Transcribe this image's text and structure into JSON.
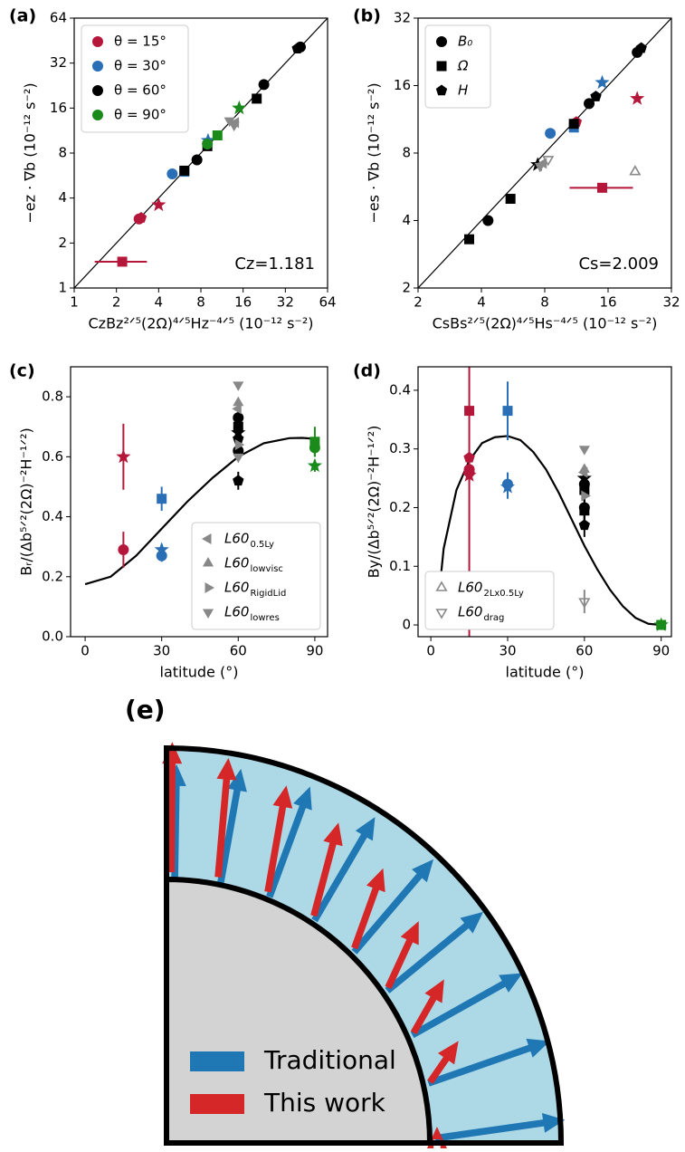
{
  "chart_data": [
    {
      "type": "scatter",
      "label": "(a)",
      "xlabel": "CzBz²ᐟ⁵(2Ω)⁴ᐟ⁵Hz⁻⁴ᐟ⁵ (10⁻¹² s⁻²)",
      "ylabel": "−ez · ∇b (10⁻¹² s⁻²)",
      "annotation": "Cz=1.181",
      "xlog": true,
      "ylog": true,
      "xlim": [
        1,
        64
      ],
      "ylim": [
        1,
        64
      ],
      "xticks": [
        1,
        2,
        4,
        8,
        16,
        32,
        64
      ],
      "yticks": [
        1,
        2,
        4,
        8,
        16,
        32,
        64
      ],
      "diagonal": true,
      "legend_corner": "upper left",
      "series": [
        {
          "name": "θ = 15°",
          "color": "#b5173a",
          "x": [
            2.9,
            3.0,
            4.0,
            2.2
          ],
          "values": [
            2.9,
            2.95,
            3.6,
            1.5
          ],
          "markers": [
            "circle",
            "pentagon",
            "star",
            "square"
          ],
          "xerr": [
            null,
            null,
            null,
            [
              0.8,
              1.1
            ]
          ]
        },
        {
          "name": "θ = 30°",
          "color": "#2a6fb5",
          "x": [
            5.0,
            6.1,
            9.0
          ],
          "values": [
            5.8,
            6.0,
            9.7
          ],
          "markers": [
            "circle",
            "square",
            "star"
          ]
        },
        {
          "name": "θ = 60°",
          "color": "#000000",
          "x": [
            6.1,
            7.5,
            8.9,
            20,
            22.5,
            39,
            41
          ],
          "values": [
            6.1,
            7.2,
            8.9,
            18.5,
            23,
            40,
            41
          ],
          "markers": [
            "square",
            "circle",
            "square",
            "square",
            "circle",
            "pentagon",
            "circle"
          ]
        },
        {
          "name": "θ = 90°",
          "color": "#1a8a1a",
          "x": [
            8.9,
            10.5,
            15
          ],
          "values": [
            9.2,
            10.5,
            16
          ],
          "markers": [
            "circle",
            "square",
            "star"
          ]
        },
        {
          "color": "#888888",
          "x": [
            12.8,
            13.8,
            14.2
          ],
          "values": [
            13.2,
            12.3,
            12.8
          ],
          "markers": [
            "tri-down",
            "tri-down",
            "tri-left"
          ]
        }
      ]
    },
    {
      "type": "scatter",
      "label": "(b)",
      "xlabel": "CsBs²ᐟ⁵(2Ω)⁴ᐟ⁵Hs⁻⁴ᐟ⁵ (10⁻¹² s⁻²)",
      "ylabel": "−es · ∇b (10⁻¹² s⁻²)",
      "annotation": "Cs=2.009",
      "xlog": true,
      "ylog": true,
      "xlim": [
        2,
        32
      ],
      "ylim": [
        2,
        32
      ],
      "xticks": [
        2,
        4,
        8,
        16,
        32
      ],
      "yticks": [
        2,
        4,
        8,
        16,
        32
      ],
      "diagonal": true,
      "legend_corner": "upper left",
      "legend_entries": [
        {
          "label": "B₀",
          "marker": "circle",
          "color": "#000000"
        },
        {
          "label": "Ω",
          "marker": "square",
          "color": "#000000"
        },
        {
          "label": "H",
          "marker": "pentagon",
          "color": "#000000"
        }
      ],
      "series": [
        {
          "color": "#b5173a",
          "x": [
            11.3,
            22,
            15
          ],
          "values": [
            11,
            14,
            5.6
          ],
          "markers": [
            "pentagon",
            "star",
            "square"
          ],
          "xerr": [
            null,
            null,
            [
              4.5,
              6
            ]
          ]
        },
        {
          "color": "#2a6fb5",
          "x": [
            8.5,
            11,
            15
          ],
          "values": [
            9.8,
            10.4,
            16.5
          ],
          "markers": [
            "circle",
            "square",
            "star"
          ]
        },
        {
          "color": "#000000",
          "x": [
            3.5,
            4.3,
            5.5,
            7.4,
            11,
            13,
            14,
            22,
            23
          ],
          "values": [
            3.3,
            4.0,
            5.0,
            7.1,
            10.8,
            13.3,
            14.3,
            22.5,
            23.5
          ],
          "markers": [
            "square",
            "circle",
            "square",
            "star",
            "square",
            "circle",
            "pentagon",
            "circle",
            "pentagon"
          ]
        },
        {
          "color": "#888888",
          "x": [
            7.6,
            7.9,
            8.3,
            21.5
          ],
          "values": [
            7.0,
            7.2,
            7.5,
            6.6
          ],
          "markers": [
            "tri-down",
            "tri-left",
            "tri-down-open",
            "tri-up-open"
          ]
        }
      ]
    },
    {
      "type": "scatter",
      "label": "(c)",
      "xlabel": "latitude (°)",
      "ylabel": "Bᵣ/(Δb⁵ᐟ²(2Ω)⁻²H⁻¹ᐟ²)",
      "xlim": [
        -5.7,
        95
      ],
      "ylim": [
        0,
        0.9
      ],
      "xticks": [
        0,
        30,
        60,
        90
      ],
      "yticks": [
        {
          "value": 0,
          "label": "0.0"
        },
        0.2,
        0.4,
        0.6,
        0.8
      ],
      "legend_corner": "lower right",
      "legend_entries": [
        {
          "label": "L60",
          "subscript": "0.5Ly",
          "marker": "tri-left",
          "color": "#888888"
        },
        {
          "label": "L60",
          "subscript": "lowvisc",
          "marker": "tri-up",
          "color": "#888888"
        },
        {
          "label": "L60",
          "subscript": "RigidLid",
          "marker": "tri-right",
          "color": "#888888"
        },
        {
          "label": "L60",
          "subscript": "lowres",
          "marker": "tri-down",
          "color": "#888888"
        }
      ],
      "curve": {
        "x": [
          0,
          10,
          20,
          30,
          40,
          50,
          60,
          70,
          80,
          85,
          90
        ],
        "values": [
          0.175,
          0.2,
          0.27,
          0.36,
          0.45,
          0.53,
          0.6,
          0.645,
          0.662,
          0.663,
          0.66
        ]
      },
      "series": [
        {
          "color": "#b5173a",
          "x": [
            15,
            15
          ],
          "values": [
            0.6,
            0.29
          ],
          "markers": [
            "star",
            "circle"
          ],
          "yerr": [
            0.11,
            0.06
          ]
        },
        {
          "color": "#2a6fb5",
          "x": [
            30,
            30,
            30
          ],
          "values": [
            0.46,
            0.29,
            0.27
          ],
          "markers": [
            "square",
            "star",
            "circle"
          ],
          "yerr": [
            0.04,
            0.02,
            0.02
          ]
        },
        {
          "color": "#000000",
          "x": [
            60,
            60,
            60,
            60,
            60,
            60
          ],
          "values": [
            0.73,
            0.7,
            0.68,
            0.66,
            0.62,
            0.52
          ],
          "markers": [
            "circle",
            "square",
            "star",
            "pentagon",
            "circle",
            "pentagon"
          ],
          "yerr": [
            0.03,
            0.03,
            0.03,
            0.03,
            0.03,
            0.03
          ]
        },
        {
          "color": "#888888",
          "x": [
            60,
            60,
            60,
            60,
            60
          ],
          "values": [
            0.84,
            0.78,
            0.76,
            0.64,
            0.6
          ],
          "markers": [
            "tri-down",
            "tri-up",
            "tri-left",
            "tri-right",
            "tri-down"
          ]
        },
        {
          "color": "#1a8a1a",
          "x": [
            90,
            90,
            90
          ],
          "values": [
            0.65,
            0.63,
            0.57
          ],
          "markers": [
            "square",
            "circle",
            "star"
          ],
          "yerr": [
            0.05,
            0.03,
            0.02
          ]
        }
      ]
    },
    {
      "type": "scatter",
      "label": "(d)",
      "xlabel": "latitude (°)",
      "ylabel": "By/(Δb⁵ᐟ²(2Ω)⁻²H⁻¹ᐟ²)",
      "xlim": [
        -5,
        94
      ],
      "ylim": [
        -0.02,
        0.44
      ],
      "xticks": [
        0,
        30,
        60,
        90
      ],
      "yticks": [
        0,
        0.1,
        0.2,
        0.3,
        0.4
      ],
      "legend_corner": "lower left",
      "legend_entries": [
        {
          "label": "L60",
          "subscript": "2Lx0.5Ly",
          "marker": "tri-up-open",
          "color": "#888888"
        },
        {
          "label": "L60",
          "subscript": "drag",
          "marker": "tri-down-open",
          "color": "#888888"
        }
      ],
      "curve": {
        "x": [
          2,
          5,
          10,
          15,
          20,
          25,
          30,
          35,
          40,
          45,
          50,
          55,
          60,
          65,
          70,
          75,
          80,
          85,
          90
        ],
        "values": [
          0,
          0.13,
          0.23,
          0.28,
          0.31,
          0.32,
          0.322,
          0.315,
          0.295,
          0.265,
          0.225,
          0.18,
          0.135,
          0.095,
          0.06,
          0.032,
          0.012,
          0.002,
          0
        ]
      },
      "series": [
        {
          "color": "#b5173a",
          "x": [
            15,
            15,
            15,
            15,
            15
          ],
          "values": [
            0.365,
            0.285,
            0.265,
            0.26,
            0.255
          ],
          "markers": [
            "square",
            "pentagon",
            "circle",
            "circle",
            "star"
          ],
          "yerr": [
            0.5,
            0.01,
            0.01,
            0.01,
            0.01
          ]
        },
        {
          "color": "#2a6fb5",
          "x": [
            30,
            30,
            30
          ],
          "values": [
            0.365,
            0.24,
            0.235
          ],
          "markers": [
            "square",
            "circle",
            "star"
          ],
          "yerr": [
            0.05,
            0.02,
            0.02
          ]
        },
        {
          "color": "#000000",
          "x": [
            60,
            60,
            60,
            60,
            60,
            60
          ],
          "values": [
            0.25,
            0.24,
            0.23,
            0.2,
            0.195,
            0.17
          ],
          "markers": [
            "star",
            "circle",
            "square",
            "circle",
            "square",
            "pentagon"
          ],
          "yerr": [
            0.02,
            0.02,
            0.02,
            0.02,
            0.02,
            0.02
          ]
        },
        {
          "color": "#888888",
          "x": [
            60,
            60,
            60,
            60,
            60
          ],
          "values": [
            0.3,
            0.265,
            0.26,
            0.22,
            0.04
          ],
          "markers": [
            "tri-down",
            "tri-up",
            "tri-left",
            "tri-right",
            "tri-down-open"
          ],
          "yerr": [
            null,
            null,
            null,
            null,
            0.02
          ]
        },
        {
          "color": "#1a8a1a",
          "x": [
            90,
            90
          ],
          "values": [
            0.0,
            0.0
          ],
          "markers": [
            "square",
            "star"
          ]
        }
      ]
    }
  ],
  "diagram": {
    "label": "(e)",
    "legend": [
      {
        "label": "Traditional",
        "color": "#1f77b4"
      },
      {
        "label": "This work",
        "color": "#d62728"
      }
    ]
  }
}
